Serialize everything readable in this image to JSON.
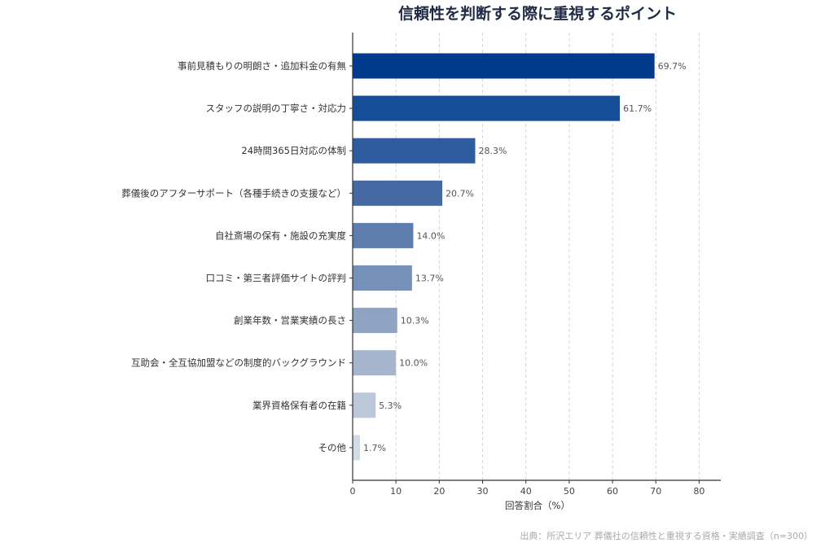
{
  "chart_data": {
    "type": "bar",
    "orientation": "horizontal",
    "title": "信頼性を判断する際に重視するポイント",
    "xlabel": "回答割合（%）",
    "ylabel": "",
    "xlim": [
      0,
      85
    ],
    "xticks": [
      "0",
      "10",
      "20",
      "30",
      "40",
      "50",
      "60",
      "70",
      "80"
    ],
    "grid": "vertical dashed",
    "categories": [
      "事前見積もりの明朗さ・追加料金の有無",
      "スタッフの説明の丁寧さ・対応力",
      "24時間365日対応の体制",
      "葬儀後のアフターサポート（各種手続きの支援など）",
      "自社斎場の保有・施設の充実度",
      "口コミ・第三者評価サイトの評判",
      "創業年数・営業実績の長さ",
      "互助会・全互協加盟などの制度的バックグラウンド",
      "業界資格保有者の在籍",
      "その他"
    ],
    "values": [
      69.7,
      61.7,
      28.3,
      20.7,
      14.0,
      13.7,
      10.3,
      10.0,
      5.3,
      1.7
    ],
    "value_labels": [
      "69.7%",
      "61.7%",
      "28.3%",
      "20.7%",
      "14.0%",
      "13.7%",
      "10.3%",
      "10.0%",
      "5.3%",
      "1.7%"
    ],
    "colors": [
      "#003a8c",
      "#164d97",
      "#2e5c9e",
      "#4668a3",
      "#5e7eae",
      "#7590b9",
      "#8fa4c2",
      "#a6b5cc",
      "#bcc8d9",
      "#d3dbe6"
    ],
    "source": "出典：所沢エリア 葬儀社の信頼性と重視する資格・実績調査（n=300）"
  }
}
